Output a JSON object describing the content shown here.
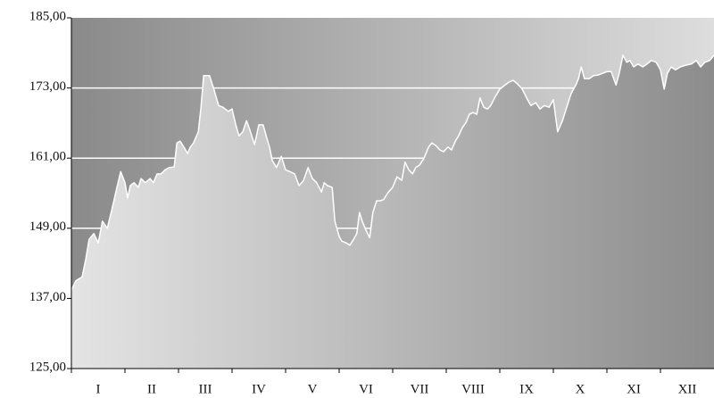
{
  "chart_data": {
    "type": "area",
    "categories": [
      "I",
      "II",
      "III",
      "IV",
      "V",
      "VI",
      "VII",
      "VIII",
      "IX",
      "X",
      "XI",
      "XII"
    ],
    "xlim": [
      0,
      12
    ],
    "x": [
      0,
      0.08,
      0.2,
      0.27,
      0.33,
      0.42,
      0.5,
      0.58,
      0.67,
      0.75,
      0.83,
      0.92,
      1,
      1.05,
      1.1,
      1.17,
      1.25,
      1.3,
      1.38,
      1.47,
      1.53,
      1.6,
      1.67,
      1.75,
      1.83,
      1.92,
      1.97,
      2.03,
      2.1,
      2.17,
      2.22,
      2.28,
      2.37,
      2.42,
      2.47,
      2.58,
      2.67,
      2.75,
      2.83,
      2.93,
      3,
      3.07,
      3.13,
      3.2,
      3.27,
      3.33,
      3.42,
      3.5,
      3.58,
      3.65,
      3.7,
      3.75,
      3.83,
      3.92,
      4,
      4.08,
      4.17,
      4.25,
      4.33,
      4.42,
      4.5,
      4.58,
      4.67,
      4.72,
      4.78,
      4.87,
      4.92,
      5,
      5.05,
      5.13,
      5.2,
      5.27,
      5.33,
      5.38,
      5.43,
      5.5,
      5.57,
      5.63,
      5.7,
      5.77,
      5.83,
      5.92,
      6,
      6.08,
      6.17,
      6.23,
      6.3,
      6.37,
      6.43,
      6.5,
      6.58,
      6.67,
      6.73,
      6.8,
      6.88,
      6.95,
      7.03,
      7.1,
      7.17,
      7.23,
      7.3,
      7.37,
      7.43,
      7.5,
      7.57,
      7.63,
      7.7,
      7.77,
      7.83,
      7.92,
      8,
      8.08,
      8.17,
      8.25,
      8.33,
      8.42,
      8.5,
      8.58,
      8.67,
      8.75,
      8.83,
      8.92,
      9,
      9.08,
      9.17,
      9.25,
      9.33,
      9.42,
      9.47,
      9.52,
      9.58,
      9.67,
      9.75,
      9.83,
      9.92,
      10,
      10.08,
      10.17,
      10.23,
      10.3,
      10.37,
      10.43,
      10.5,
      10.58,
      10.67,
      10.75,
      10.83,
      10.92,
      11,
      11.07,
      11.13,
      11.2,
      11.28,
      11.37,
      11.47,
      11.58,
      11.67,
      11.75,
      11.83,
      11.92,
      12
    ],
    "values": [
      138.4,
      140.0,
      140.7,
      143.8,
      147.1,
      148.1,
      146.5,
      150.2,
      149.0,
      152.0,
      155.2,
      158.7,
      156.8,
      154.2,
      156.3,
      156.8,
      156.0,
      157.5,
      156.8,
      157.5,
      156.8,
      158.3,
      158.3,
      159.0,
      159.4,
      159.5,
      163.6,
      163.9,
      162.9,
      161.8,
      162.9,
      163.6,
      165.5,
      169.7,
      175.1,
      175.1,
      172.5,
      170.0,
      169.7,
      169.0,
      169.4,
      166.7,
      164.8,
      165.5,
      167.4,
      165.9,
      163.3,
      166.7,
      166.7,
      164.4,
      162.9,
      160.6,
      159.4,
      161.3,
      159.0,
      158.7,
      158.3,
      156.3,
      157.1,
      159.4,
      157.5,
      156.8,
      155.2,
      156.8,
      156.3,
      156.0,
      150.2,
      147.6,
      146.8,
      146.5,
      146.1,
      147.1,
      148.1,
      151.7,
      150.2,
      148.7,
      147.4,
      151.7,
      153.7,
      153.7,
      153.9,
      155.2,
      156.0,
      157.8,
      157.2,
      160.3,
      159.0,
      158.3,
      159.4,
      159.8,
      160.9,
      162.9,
      163.6,
      163.2,
      162.4,
      162.1,
      162.9,
      162.4,
      163.9,
      164.8,
      166.2,
      167.1,
      168.5,
      168.8,
      168.5,
      171.3,
      169.7,
      169.4,
      170.0,
      171.6,
      172.8,
      173.4,
      174.0,
      174.3,
      173.7,
      172.8,
      171.3,
      170.0,
      170.5,
      169.4,
      170.0,
      169.7,
      171.0,
      165.5,
      167.4,
      169.7,
      172.0,
      173.5,
      174.6,
      176.6,
      174.6,
      174.6,
      175.1,
      175.2,
      175.5,
      175.8,
      175.8,
      173.5,
      175.5,
      178.6,
      177.4,
      177.7,
      176.6,
      177.1,
      176.6,
      177.1,
      177.7,
      177.4,
      176.1,
      172.8,
      175.5,
      176.6,
      176.1,
      176.6,
      176.9,
      177.1,
      177.7,
      176.6,
      177.4,
      177.7,
      178.6
    ],
    "color": "#ffffff",
    "ylim": [
      125,
      185
    ],
    "yticks": [
      {
        "value": 125,
        "label": "125,00"
      },
      {
        "value": 137,
        "label": "137,00"
      },
      {
        "value": 149,
        "label": "149,00"
      },
      {
        "value": 161,
        "label": "161,00"
      },
      {
        "value": 173,
        "label": "173,00"
      },
      {
        "value": 185,
        "label": "185,00"
      }
    ],
    "grid": true
  }
}
